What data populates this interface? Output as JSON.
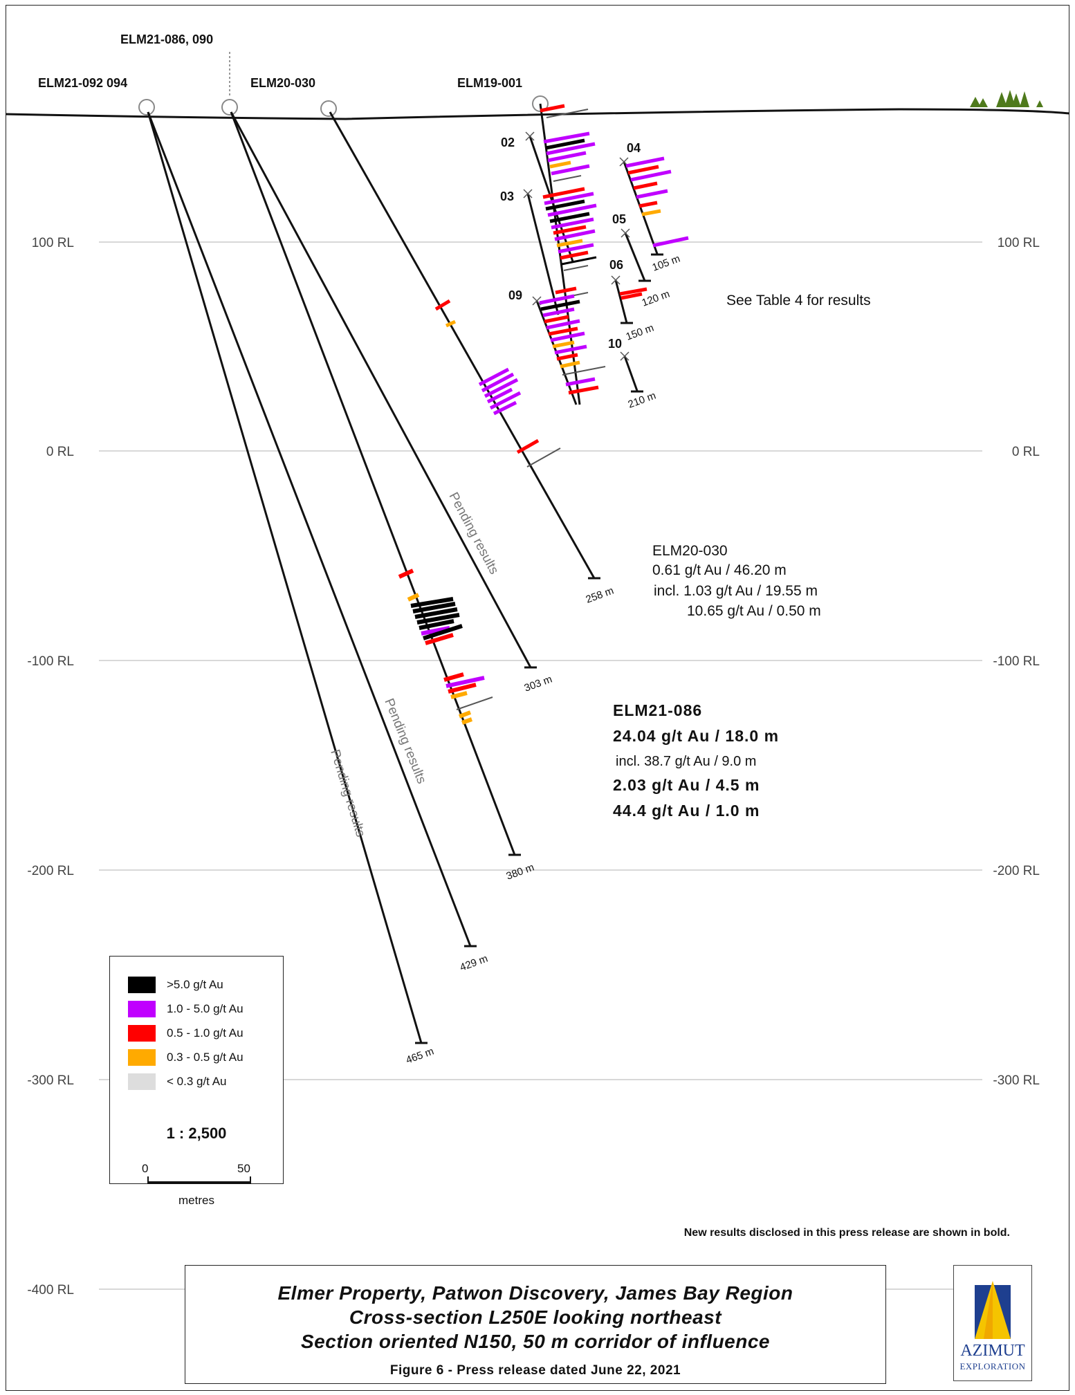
{
  "figure": {
    "title_lines": [
      "Elmer Property, Patwon Discovery, James Bay Region",
      "Cross-section L250E looking northeast",
      "Section oriented N150, 50 m corridor of influence"
    ],
    "figure_caption": "Figure 6 - Press release dated June 22, 2021",
    "new_results_note": "New results disclosed in this press release are shown in bold."
  },
  "elevation_labels": [
    "100 RL",
    "0 RL",
    "-100 RL",
    "-200 RL",
    "-300 RL",
    "-400 RL"
  ],
  "holes": {
    "elm21_092_094": "ELM21-092 094",
    "elm21_086_090": "ELM21-086, 090",
    "elm20_030": "ELM20-030",
    "elm19_001": "ELM19-001"
  },
  "short_holes": [
    "02",
    "03",
    "04",
    "05",
    "06",
    "09",
    "10"
  ],
  "depths": {
    "d465": "465 m",
    "d429": "429 m",
    "d380": "380 m",
    "d303": "303 m",
    "d258": "258 m",
    "d105": "105 m",
    "d120": "120 m",
    "d150": "150 m",
    "d210": "210 m"
  },
  "pending_label": "Pending results",
  "table_note": "See Table 4 for results",
  "elm20_030_results": {
    "name": "ELM20-030",
    "line1": "0.61 g/t Au / 46.20 m",
    "line2": "incl. 1.03 g/t Au / 19.55 m",
    "line3": "10.65 g/t Au / 0.50 m"
  },
  "elm21_086_results": {
    "name": "ELM21-086",
    "line1": "24.04 g/t Au / 18.0 m",
    "line2": "incl. 38.7 g/t Au / 9.0 m",
    "line3": "2.03 g/t Au / 4.5 m",
    "line4": "44.4 g/t Au / 1.0 m"
  },
  "legend": {
    "items": [
      {
        "label": ">5.0 g/t Au",
        "color": "#000000"
      },
      {
        "label": "1.0 - 5.0 g/t Au",
        "color": "#c000ff"
      },
      {
        "label": "0.5 - 1.0 g/t Au",
        "color": "#ff0000"
      },
      {
        "label": "0.3 - 0.5 g/t Au",
        "color": "#ffaa00"
      },
      {
        "label": "< 0.3 g/t Au",
        "color": "#dddddd"
      }
    ],
    "scale": "1 : 2,500",
    "scale_start": "0",
    "scale_end": "50",
    "scale_unit": "metres"
  },
  "logo": {
    "name": "AZIMUT",
    "subtitle": "EXPLORATION"
  }
}
